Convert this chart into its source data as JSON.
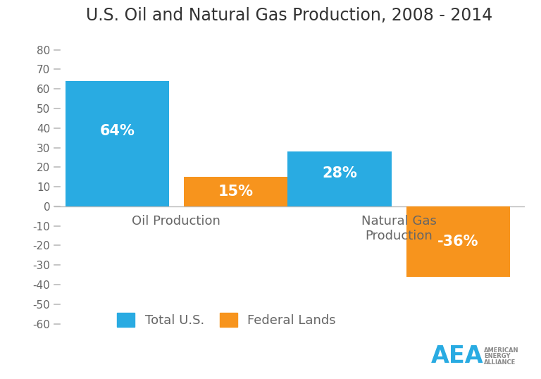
{
  "title": "U.S. Oil and Natural Gas Production, 2008 - 2014",
  "title_fontsize": 17,
  "background_color": "#ffffff",
  "categories": [
    "Oil Production",
    "Natural Gas\nProduction"
  ],
  "total_us_values": [
    64,
    28
  ],
  "federal_lands_values": [
    15,
    -36
  ],
  "bar_labels": [
    "64%",
    "15%",
    "28%",
    "-36%"
  ],
  "total_us_color": "#29ABE2",
  "federal_lands_color": "#F7941D",
  "label_color": "#ffffff",
  "label_fontsize": 15,
  "ylim": [
    -65,
    88
  ],
  "yticks": [
    -60,
    -50,
    -40,
    -30,
    -20,
    -10,
    0,
    10,
    20,
    30,
    40,
    50,
    60,
    70,
    80
  ],
  "xlabel_fontsize": 13,
  "legend_labels": [
    "Total U.S.",
    "Federal Lands"
  ],
  "tick_color": "#666666",
  "axis_color": "#bbbbbb",
  "aea_text_color": "#29ABE2",
  "aea_small_text_color": "#888888",
  "bar_width": 0.28,
  "group_centers": [
    0.28,
    0.88
  ]
}
